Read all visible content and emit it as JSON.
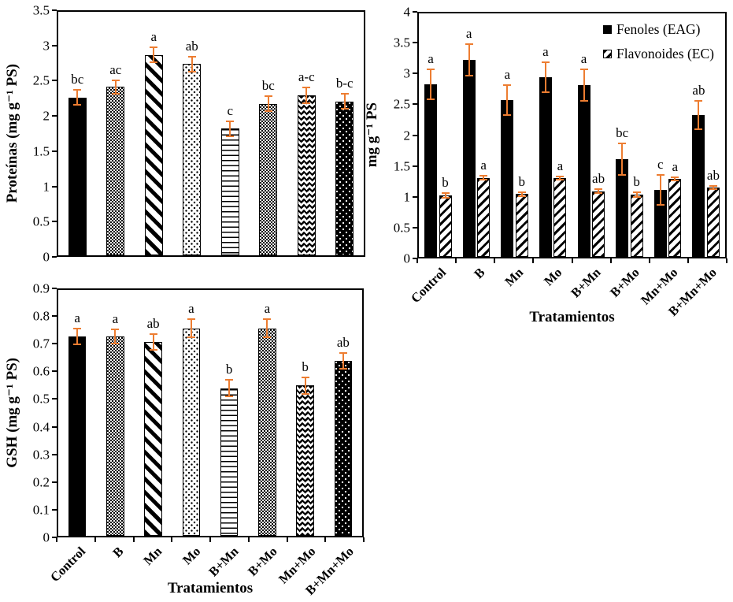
{
  "figure": {
    "background": "#ffffff",
    "error_bar_color": "#ED7D31",
    "bar_color": "#000000"
  },
  "categories": [
    "Control",
    "B",
    "Mn",
    "Mo",
    "B+Mn",
    "B+Mo",
    "Mn+Mo",
    "B+Mn+Mo"
  ],
  "chart_data": [
    {
      "id": "proteinas",
      "type": "bar",
      "title": "",
      "ylabel": "Proteínas (mg g⁻¹ PS)",
      "xlabel": "",
      "ylim": [
        0,
        3.5
      ],
      "yticks": [
        0,
        0.5,
        1,
        1.5,
        2,
        2.5,
        3,
        3.5
      ],
      "grid": false,
      "show_xticklabels": false,
      "bar_width_pct": 47,
      "series": [
        {
          "name": "Proteínas",
          "patterns": [
            "solid",
            "check",
            "diag-down",
            "dots-light",
            "hlines",
            "check",
            "zigzag",
            "dots-dark"
          ],
          "values": [
            2.27,
            2.42,
            2.88,
            2.75,
            1.82,
            2.18,
            2.3,
            2.21
          ],
          "errors": [
            0.12,
            0.11,
            0.12,
            0.12,
            0.12,
            0.12,
            0.12,
            0.12
          ],
          "letters": [
            "bc",
            "ac",
            "a",
            "ab",
            "c",
            "bc",
            "a-c",
            "b-c"
          ]
        }
      ]
    },
    {
      "id": "fenoles-flavonoides",
      "type": "bar",
      "title": "",
      "ylabel": "mg g⁻¹ PS",
      "xlabel": "Tratamientos",
      "ylim": [
        0,
        4
      ],
      "yticks": [
        0,
        0.5,
        1,
        1.5,
        2,
        2.5,
        3,
        3.5,
        4
      ],
      "grid": false,
      "show_xticklabels": true,
      "legend_position": "top-right",
      "bar_width_pct": 33,
      "pair_gap_pct": 5,
      "series": [
        {
          "name": "Fenoles (EAG)",
          "pattern": "solid",
          "values": [
            2.84,
            3.24,
            2.58,
            2.95,
            2.82,
            1.61,
            1.1,
            2.33
          ],
          "errors": [
            0.26,
            0.27,
            0.26,
            0.26,
            0.27,
            0.27,
            0.26,
            0.25
          ],
          "letters": [
            "a",
            "a",
            "a",
            "a",
            "a",
            "bc",
            "c",
            "ab"
          ]
        },
        {
          "name": "Flavonoides (EC)",
          "pattern": "diag-up",
          "values": [
            1.01,
            1.3,
            1.03,
            1.3,
            1.08,
            1.02,
            1.28,
            1.14
          ],
          "errors": [
            0.05,
            0.05,
            0.05,
            0.04,
            0.05,
            0.05,
            0.04,
            0.04
          ],
          "letters": [
            "b",
            "a",
            "b",
            "a",
            "ab",
            "b",
            "a",
            "ab"
          ]
        }
      ]
    },
    {
      "id": "gsh",
      "type": "bar",
      "title": "",
      "ylabel": "GSH (mg g⁻¹ PS)",
      "xlabel": "Tratamientos",
      "ylim": [
        0,
        0.9
      ],
      "yticks": [
        0,
        0.1,
        0.2,
        0.3,
        0.4,
        0.5,
        0.6,
        0.7,
        0.8,
        0.9
      ],
      "grid": false,
      "show_xticklabels": true,
      "bar_width_pct": 47,
      "series": [
        {
          "name": "GSH",
          "patterns": [
            "solid",
            "check",
            "diag-down",
            "dots-light",
            "hlines",
            "check",
            "zigzag",
            "dots-dark"
          ],
          "values": [
            0.73,
            0.73,
            0.71,
            0.76,
            0.54,
            0.76,
            0.55,
            0.64
          ],
          "errors": [
            0.033,
            0.03,
            0.032,
            0.035,
            0.033,
            0.035,
            0.033,
            0.032
          ],
          "letters": [
            "a",
            "a",
            "ab",
            "a",
            "b",
            "a",
            "b",
            "ab"
          ]
        }
      ]
    }
  ]
}
